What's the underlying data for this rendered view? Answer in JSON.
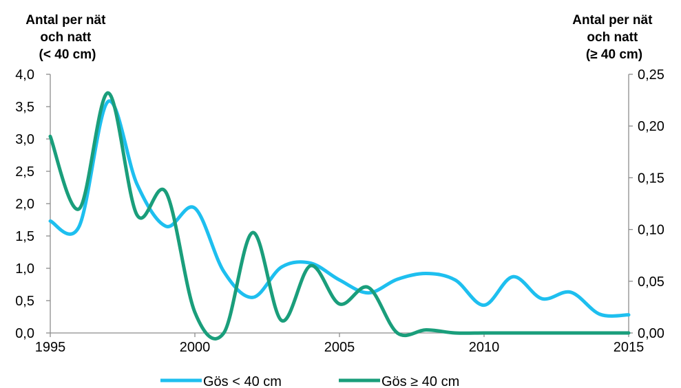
{
  "chart_data": {
    "type": "line",
    "x_ticks": [
      "1995",
      "2000",
      "2005",
      "2010",
      "2015"
    ],
    "xlim": [
      1995,
      2015
    ],
    "y_left": {
      "label_lines": [
        "Antal per nät",
        "och natt",
        "(< 40 cm)"
      ],
      "ticks": [
        "0,0",
        "0,5",
        "1,0",
        "1,5",
        "2,0",
        "2,5",
        "3,0",
        "3,5",
        "4,0"
      ],
      "ylim": [
        0,
        4.0
      ]
    },
    "y_right": {
      "label_lines": [
        "Antal per nät",
        "och natt",
        "(≥ 40 cm)"
      ],
      "ticks": [
        "0,00",
        "0,05",
        "0,10",
        "0,15",
        "0,20",
        "0,25"
      ],
      "ylim": [
        0,
        0.25
      ]
    },
    "grid": false,
    "legend_position": "bottom",
    "series": [
      {
        "name": "Gös < 40 cm",
        "axis": "left",
        "color": "#1EBFEF",
        "x": [
          1995,
          1996,
          1997,
          1998,
          1999,
          2000,
          2001,
          2002,
          2003,
          2004,
          2005,
          2006,
          2007,
          2008,
          2009,
          2010,
          2011,
          2012,
          2013,
          2014,
          2015
        ],
        "values": [
          1.73,
          1.65,
          3.58,
          2.3,
          1.65,
          1.93,
          0.95,
          0.55,
          1.02,
          1.08,
          0.82,
          0.62,
          0.83,
          0.92,
          0.82,
          0.43,
          0.87,
          0.53,
          0.63,
          0.29,
          0.28
        ]
      },
      {
        "name": "Gös ≥ 40 cm",
        "axis": "right",
        "color": "#1A9E7B",
        "x": [
          1995,
          1996,
          1997,
          1998,
          1999,
          2000,
          2001,
          2002,
          2003,
          2004,
          2005,
          2006,
          2007,
          2008,
          2009,
          2010,
          2011,
          2012,
          2013,
          2014,
          2015
        ],
        "values": [
          0.19,
          0.12,
          0.232,
          0.114,
          0.136,
          0.02,
          0.0,
          0.097,
          0.012,
          0.065,
          0.028,
          0.044,
          0.0,
          0.003,
          0.0,
          0.0,
          0.0,
          0.0,
          0.0,
          0.0,
          0.0
        ]
      }
    ]
  }
}
